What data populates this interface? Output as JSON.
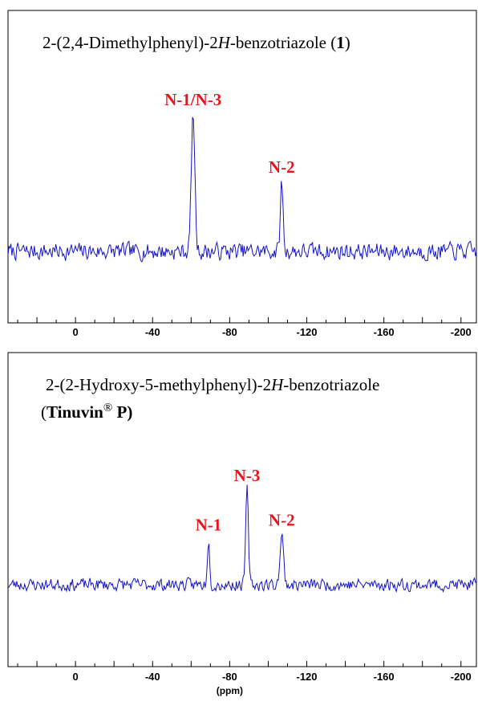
{
  "chart_data": [
    {
      "type": "line",
      "title_parts": [
        {
          "text": "2-(2,4-Dimethylphenyl)-2",
          "style": "normal"
        },
        {
          "text": "H",
          "style": "italic"
        },
        {
          "text": "-benzotriazole (",
          "style": "normal"
        },
        {
          "text": "1",
          "style": "bold"
        },
        {
          "text": ")",
          "style": "normal"
        }
      ],
      "xlim": [
        35,
        -208
      ],
      "x_reversed": true,
      "xticks": [
        0,
        -40,
        -80,
        -120,
        -160,
        -200
      ],
      "xtick_labels": [
        "0",
        "-40",
        "-80",
        "-120",
        "-160",
        "-200"
      ],
      "xlabel": "",
      "line_color": "#1414c8",
      "peaks": [
        {
          "label": "N-1/N-3",
          "ppm": -61,
          "height": 0.93,
          "width": 1.3
        },
        {
          "label": "N-2",
          "ppm": -107,
          "height": 0.47,
          "width": 1.0
        }
      ],
      "noise_seed": 7,
      "noise_amplitude": 0.13,
      "baseline": 0.5
    },
    {
      "type": "line",
      "title_parts": [
        {
          "text": "2-(2-Hydroxy-5-methylphenyl)-2",
          "style": "normal"
        },
        {
          "text": "H",
          "style": "italic"
        },
        {
          "text": "-benzotriazole",
          "style": "normal"
        }
      ],
      "title_line2_parts": [
        {
          "text": "(",
          "style": "normal"
        },
        {
          "text": "Tinuvin",
          "style": "bold"
        },
        {
          "text": "®",
          "style": "super"
        },
        {
          "text": " P)",
          "style": "bold"
        }
      ],
      "xlim": [
        35,
        -208
      ],
      "x_reversed": true,
      "xticks": [
        0,
        -40,
        -80,
        -120,
        -160,
        -200
      ],
      "xtick_labels": [
        "0",
        "-40",
        "-80",
        "-120",
        "-160",
        "-200"
      ],
      "xlabel": "(ppm)",
      "line_color": "#1414c8",
      "peaks": [
        {
          "label": "N-1",
          "ppm": -69,
          "height": 0.38,
          "width": 0.9
        },
        {
          "label": "N-3",
          "ppm": -89,
          "height": 0.8,
          "width": 1.0
        },
        {
          "label": "N-2",
          "ppm": -107,
          "height": 0.42,
          "width": 1.3
        }
      ],
      "noise_seed": 23,
      "noise_amplitude": 0.12,
      "baseline": 0.5
    }
  ]
}
